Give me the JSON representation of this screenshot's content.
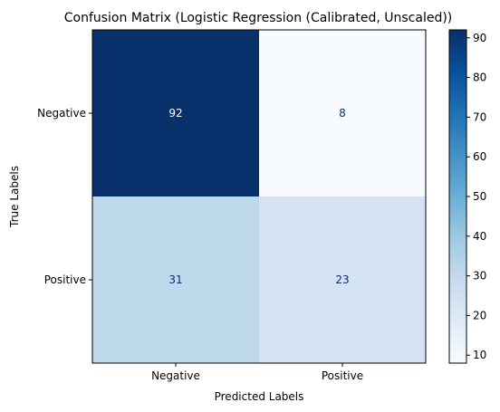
{
  "chart_data": {
    "type": "heatmap",
    "title": "Confusion Matrix (Logistic Regression (Calibrated, Unscaled))",
    "xlabel": "Predicted Labels",
    "ylabel": "True Labels",
    "x_categories": [
      "Negative",
      "Positive"
    ],
    "y_categories": [
      "Negative",
      "Positive"
    ],
    "values": [
      [
        92,
        8
      ],
      [
        31,
        23
      ]
    ],
    "colormap": "Blues",
    "colorbar": {
      "vmin": 8,
      "vmax": 92,
      "ticks": [
        10,
        20,
        30,
        40,
        50,
        60,
        70,
        80,
        90
      ],
      "position": "right"
    },
    "grid": false
  }
}
